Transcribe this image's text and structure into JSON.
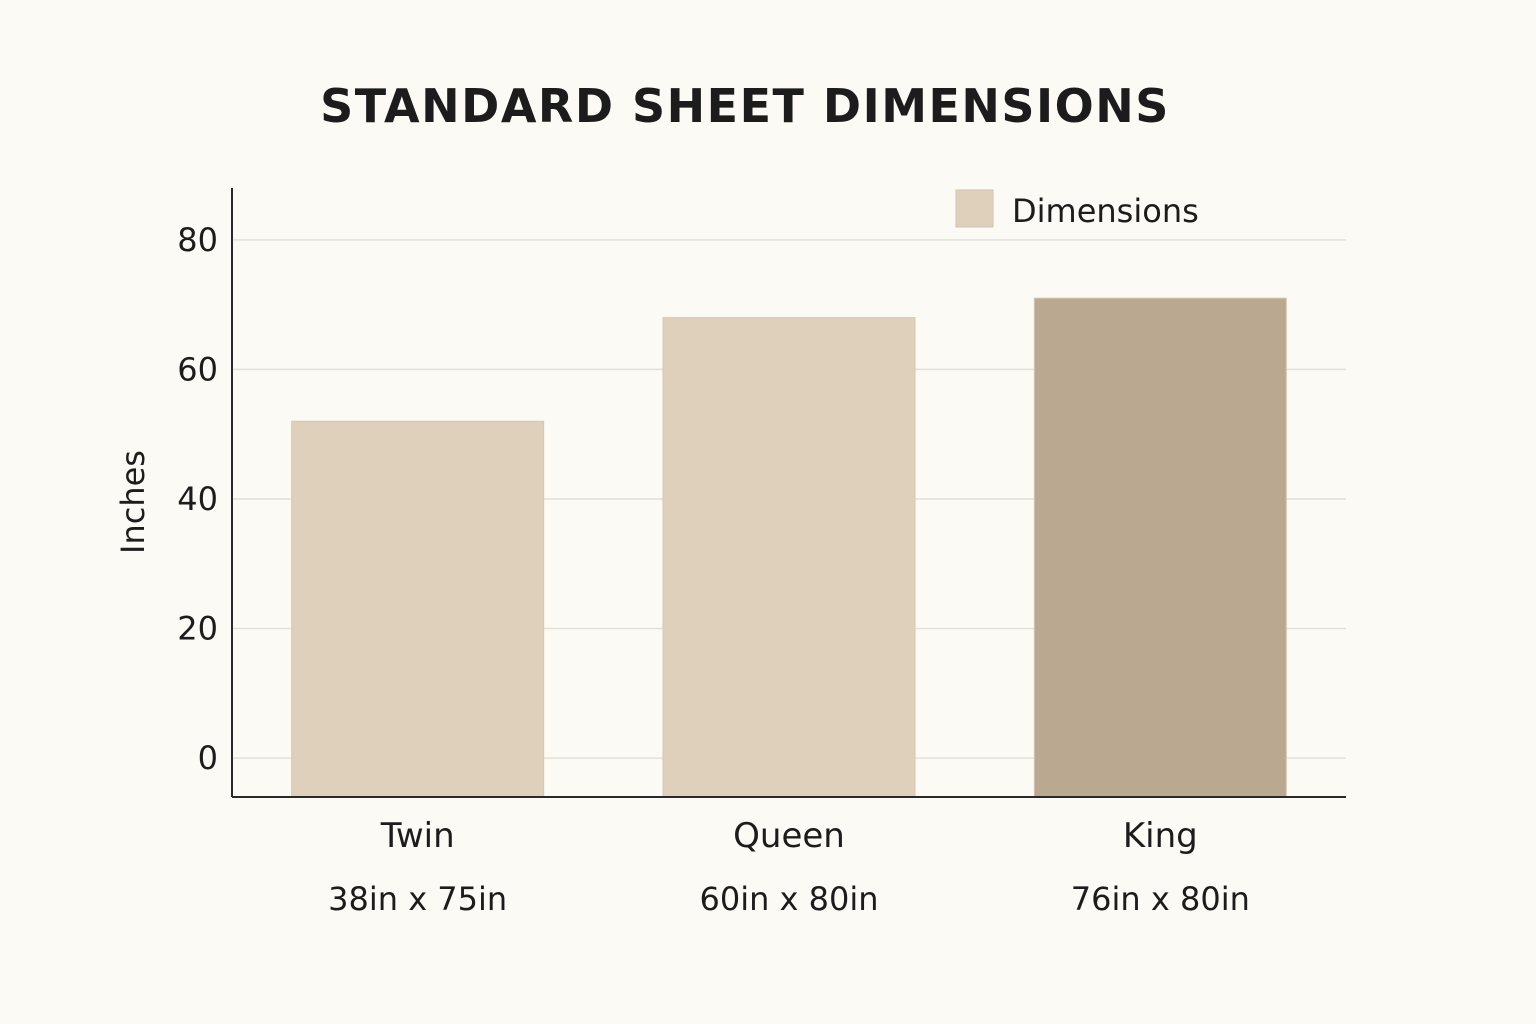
{
  "chart_data": {
    "type": "bar",
    "title": "STANDARD SHEET DIMENSIONS",
    "xlabel": "",
    "ylabel": "Inches",
    "ylim": [
      -6,
      88
    ],
    "yticks": [
      0,
      20,
      40,
      60,
      80
    ],
    "grid": true,
    "legend_position": "top-right",
    "categories": [
      "Twin",
      "Queen",
      "King"
    ],
    "dimension_labels": [
      "38in x 75in",
      "60in x 80in",
      "76in x 80in"
    ],
    "series": [
      {
        "name": "Dimensions",
        "color": "#dfd0bb",
        "values": [
          52,
          68,
          71
        ],
        "bar_colors": [
          "#dfd0bb",
          "#dfd0bb",
          "#baa890"
        ]
      }
    ]
  }
}
